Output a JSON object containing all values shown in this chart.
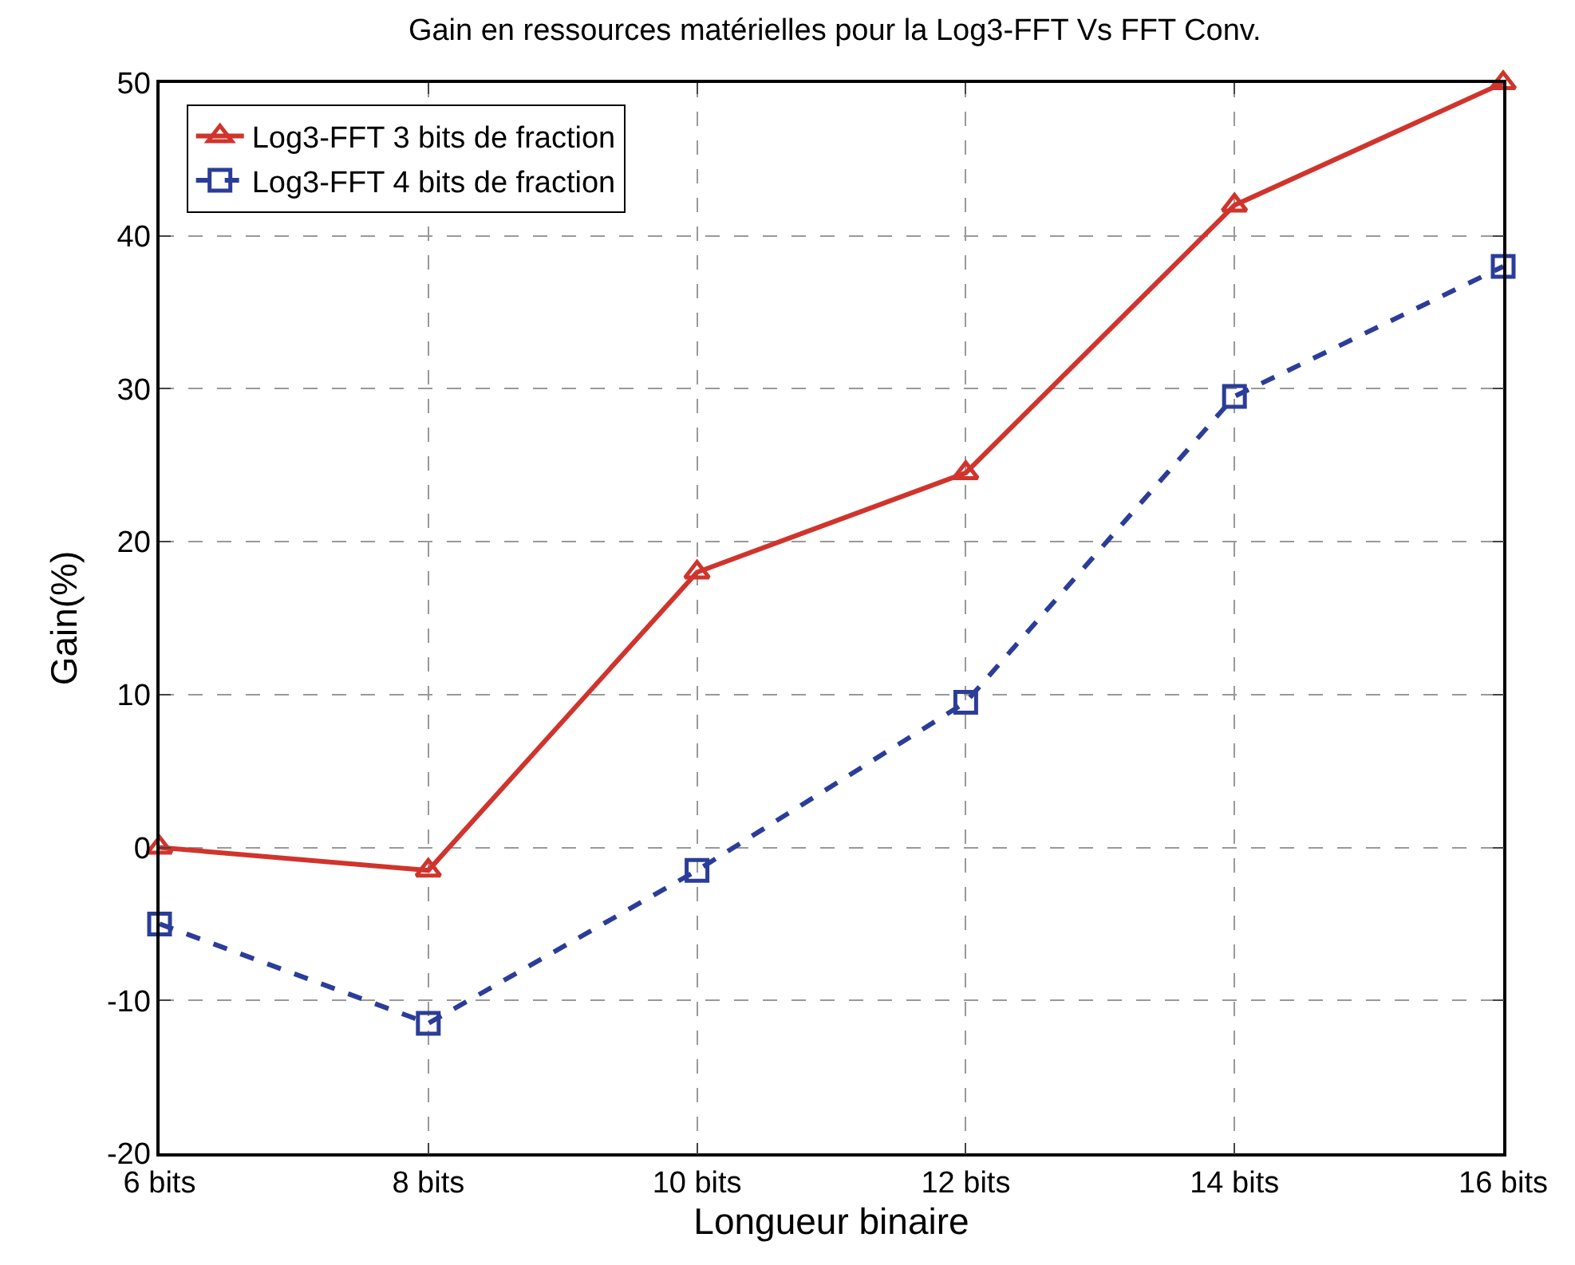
{
  "chart_data": {
    "type": "line",
    "title": "Gain en ressources matérielles pour la Log3-FFT Vs FFT Conv.",
    "xlabel": "Longueur binaire",
    "ylabel": "Gain(%)",
    "categories": [
      "6 bits",
      "8 bits",
      "10 bits",
      "12 bits",
      "14 bits",
      "16 bits"
    ],
    "series": [
      {
        "name": "Log3-FFT 3 bits de fraction",
        "color": "#d0342c",
        "marker": "triangle",
        "line_style": "solid",
        "values": [
          0,
          -1.5,
          18,
          24.5,
          42,
          50
        ]
      },
      {
        "name": "Log3-FFT 4 bits de fraction",
        "color": "#2b3d98",
        "marker": "square",
        "line_style": "dashed",
        "values": [
          -5,
          -11.5,
          -1.5,
          9.5,
          29.5,
          38
        ]
      }
    ],
    "ylim": [
      -20,
      50
    ],
    "yticks": [
      -20,
      -10,
      0,
      10,
      20,
      30,
      40,
      50
    ],
    "grid": true,
    "legend": "top left"
  }
}
